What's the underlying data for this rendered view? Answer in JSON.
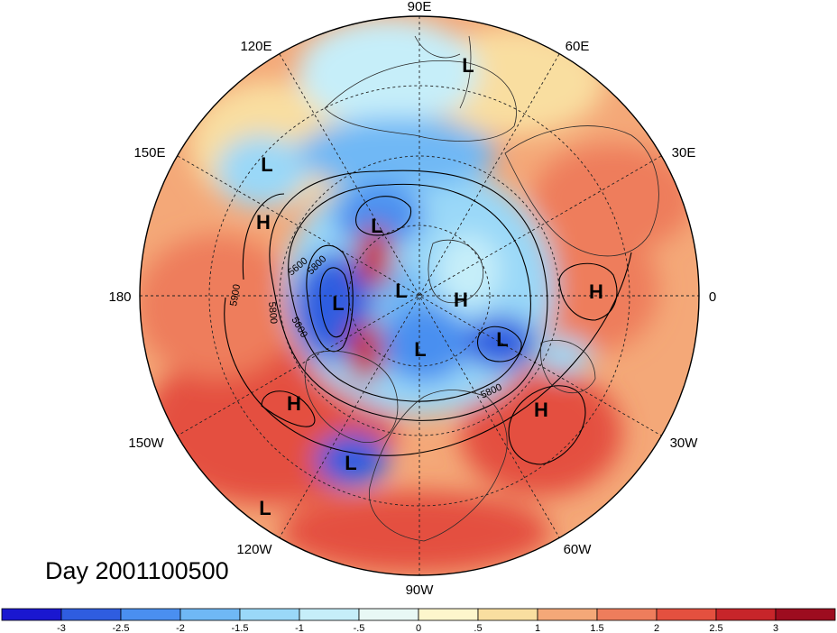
{
  "title": "Day 2001100500",
  "colors": {
    "neg3": "#1a17d0",
    "neg25": "#2f5de0",
    "neg2": "#4a8ff0",
    "neg15": "#6fb8f5",
    "neg1": "#9ad8f8",
    "neg05": "#c6eef9",
    "neg0": "#e8f8f5",
    "pos0": "#fdf6cc",
    "pos05": "#f9dea0",
    "pos1": "#f4a878",
    "pos15": "#ee7d5c",
    "pos2": "#e4503f",
    "pos25": "#c7252a",
    "pos3": "#9d0c1f"
  },
  "longitude_labels": [
    "90E",
    "60E",
    "30E",
    "0",
    "30W",
    "60W",
    "90W",
    "120W",
    "150W",
    "180",
    "150E",
    "120E"
  ],
  "pressure_centers": [
    {
      "label": "L"
    },
    {
      "label": "L"
    },
    {
      "label": "L"
    },
    {
      "label": "L"
    },
    {
      "label": "L"
    },
    {
      "label": "L"
    },
    {
      "label": "L"
    },
    {
      "label": "L"
    },
    {
      "label": "L"
    },
    {
      "label": "H"
    },
    {
      "label": "H"
    },
    {
      "label": "H"
    },
    {
      "label": "H"
    },
    {
      "label": "H"
    }
  ],
  "contour_labels": [
    "5600",
    "5600",
    "5800",
    "5900",
    "5800",
    "5800"
  ],
  "colorbar": {
    "tick_labels": [
      "-3",
      "-2.5",
      "-2",
      "-1.5",
      "-1",
      "-.5",
      "0",
      ".5",
      "1",
      "1.5",
      "2",
      "2.5",
      "3"
    ]
  }
}
